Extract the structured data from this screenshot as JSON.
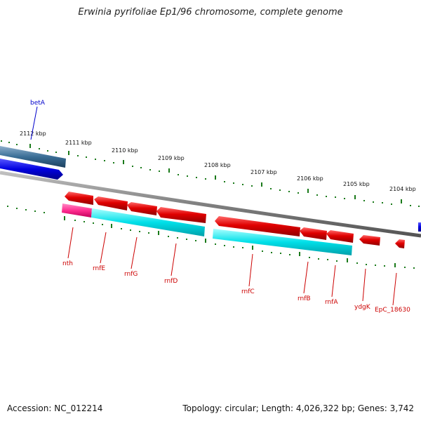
{
  "title": "Erwinia pyrifoliae Ep1/96 chromosome, complete genome",
  "footer": {
    "accession": "Accession: NC_012214",
    "summary": "Topology: circular; Length: 4,026,322 bp; Genes: 3,742"
  },
  "scale_labels": [
    "2112 kbp",
    "2111 kbp",
    "2110 kbp",
    "2109 kbp",
    "2108 kbp",
    "2107 kbp",
    "2106 kbp",
    "2105 kbp",
    "2104 kbp"
  ],
  "genes": {
    "betA": "betA",
    "nth": "nth",
    "rnfE": "rnfE",
    "rnfG": "rnfG",
    "rnfD": "rnfD",
    "rnfC": "rnfC",
    "rnfB": "rnfB",
    "rnfA": "rnfA",
    "ydgK": "ydgK",
    "EpC_18630": "EpC_18630"
  },
  "colors": {
    "forward_gene": "#e00000",
    "reverse_gene": "#0000e0",
    "operon": "#00d8e0",
    "operon_start": "#ff3399",
    "backbone": "#808080",
    "tick": "#1a7a1a"
  }
}
